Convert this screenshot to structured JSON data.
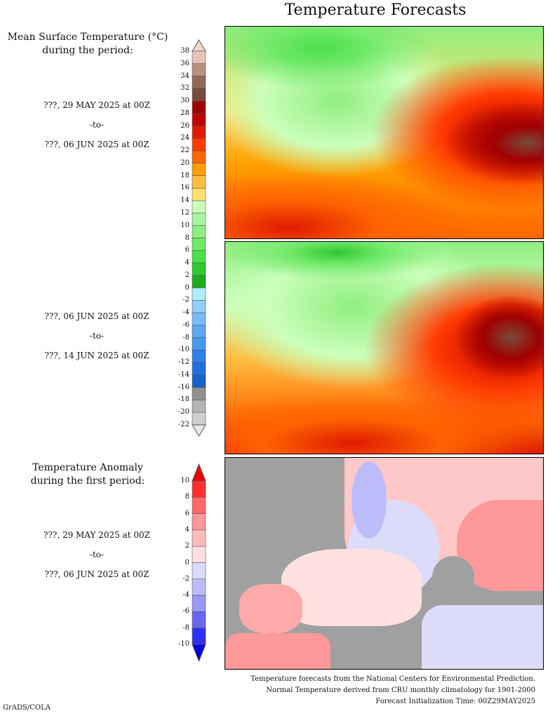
{
  "title": "Temperature Forecasts",
  "mean_panel": {
    "label_line1": "Mean Surface Temperature (°C)",
    "label_line2": "during the period:",
    "period1": {
      "start": "???, 29 MAY 2025 at 00Z",
      "to": "-to-",
      "end": "???, 06 JUN 2025 at 00Z"
    },
    "period2": {
      "start": "???, 06 JUN 2025 at 00Z",
      "to": "-to-",
      "end": "???, 14 JUN 2025 at 00Z"
    }
  },
  "anomaly_panel": {
    "label_line1": "Temperature Anomaly",
    "label_line2": "during the first period:",
    "period": {
      "start": "???, 29 MAY 2025 at 00Z",
      "to": "-to-",
      "end": "???, 06 JUN 2025 at 00Z"
    }
  },
  "temperature_colorbar": {
    "ticks": [
      "38",
      "36",
      "34",
      "32",
      "30",
      "28",
      "26",
      "24",
      "22",
      "20",
      "18",
      "16",
      "14",
      "12",
      "10",
      "8",
      "6",
      "4",
      "2",
      "0",
      "-2",
      "-4",
      "-6",
      "-8",
      "-10",
      "-12",
      "-14",
      "-16",
      "-18",
      "-20",
      "-22"
    ],
    "over_color": "#f0d8cc",
    "under_color": "#e8e8e8",
    "colors": [
      "#e8c4b4",
      "#b89080",
      "#946858",
      "#7a4a3c",
      "#a00000",
      "#c00000",
      "#e01a00",
      "#ff3a00",
      "#ff6400",
      "#ffa000",
      "#ffbe40",
      "#ffe070",
      "#ccffbb",
      "#aaf5a0",
      "#90ee80",
      "#6ee868",
      "#4ae04a",
      "#30c830",
      "#20aa20",
      "#b0ecf8",
      "#90d0f8",
      "#78bcf8",
      "#60a8f0",
      "#4898f0",
      "#3080e8",
      "#2070e0",
      "#1a60c8",
      "#909090",
      "#b4b4b4",
      "#d0d0d0"
    ]
  },
  "anomaly_colorbar": {
    "ticks": [
      "10",
      "8",
      "6",
      "4",
      "2",
      "0",
      "-2",
      "-4",
      "-6",
      "-8",
      "-10"
    ],
    "over_color": "#ee0000",
    "under_color": "#0000e0",
    "colors": [
      "#ff3030",
      "#ff6868",
      "#ff9898",
      "#ffbcbc",
      "#ffe0e0",
      "#dcdcfa",
      "#bcbcfa",
      "#9898f8",
      "#6868f0",
      "#3030f0"
    ]
  },
  "credits": {
    "line1": "Temperature forecasts from the National Centers for Environmental Prediction.",
    "line2": "Normal Temperature derived from CRU monthly climatology for 1901-2000",
    "line3": "Forecast Initialization Time: 00Z29MAY2025"
  },
  "footer": "GrADS/COLA"
}
